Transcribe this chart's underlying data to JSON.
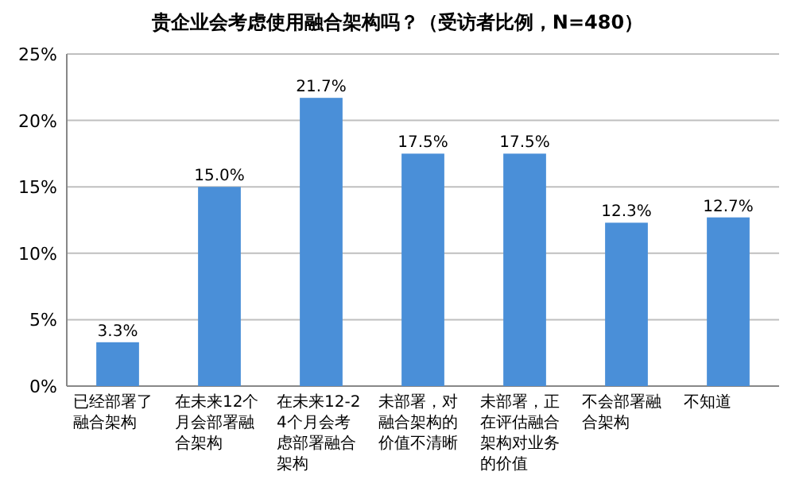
{
  "chart_data": {
    "type": "bar",
    "title": "贵企业会考虑使用融合架构吗？（受访者比例，N=480）",
    "categories": [
      "已经部署了融合架构",
      "在未来12个月会部署融合架构",
      "在未来12-24个月会考虑部署融合架构",
      "未部署，对融合架构的价值不清晰",
      "未部署，正在评估融合架构对业务的价值",
      "不会部署融合架构",
      "不知道"
    ],
    "values": [
      3.3,
      15.0,
      21.7,
      17.5,
      17.5,
      12.3,
      12.7
    ],
    "value_labels": [
      "3.3%",
      "15.0%",
      "21.7%",
      "17.5%",
      "17.5%",
      "12.3%",
      "12.7%"
    ],
    "color": "#4a8fd8",
    "ylim": [
      0,
      25
    ],
    "yticks": [
      {
        "value": 0,
        "label": "0%"
      },
      {
        "value": 5,
        "label": "5%"
      },
      {
        "value": 10,
        "label": "10%"
      },
      {
        "value": 15,
        "label": "15%"
      },
      {
        "value": 20,
        "label": "20%"
      },
      {
        "value": 25,
        "label": "25%"
      }
    ],
    "grid": "y"
  }
}
